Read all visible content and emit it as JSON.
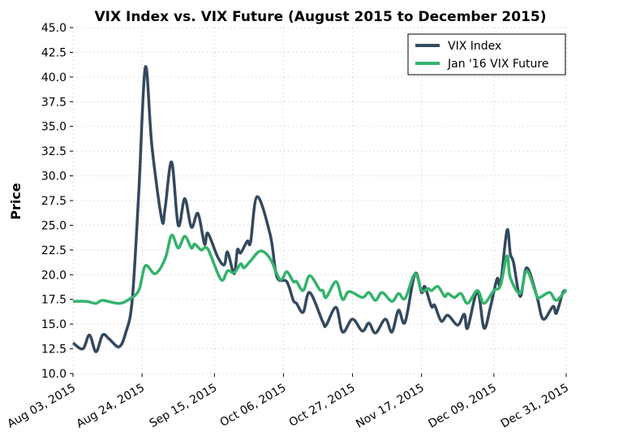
{
  "chart_data": {
    "type": "line",
    "title": "VIX Index vs. VIX Future (August 2015 to December 2015)",
    "xlabel": "",
    "ylabel": "Price",
    "ylim": [
      10.0,
      45.0
    ],
    "xlim": [
      "2015-08-03",
      "2015-12-31"
    ],
    "yticks": [
      "10.0",
      "12.5",
      "15.0",
      "17.5",
      "20.0",
      "22.5",
      "25.0",
      "27.5",
      "30.0",
      "32.5",
      "35.0",
      "37.5",
      "40.0",
      "42.5",
      "45.0"
    ],
    "xticks": [
      {
        "date": "2015-08-03",
        "label": "Aug 03, 2015"
      },
      {
        "date": "2015-08-24",
        "label": "Aug 24, 2015"
      },
      {
        "date": "2015-09-15",
        "label": "Sep 15, 2015"
      },
      {
        "date": "2015-10-06",
        "label": "Oct 06, 2015"
      },
      {
        "date": "2015-10-27",
        "label": "Oct 27, 2015"
      },
      {
        "date": "2015-11-17",
        "label": "Nov 17, 2015"
      },
      {
        "date": "2015-12-09",
        "label": "Dec 09, 2015"
      },
      {
        "date": "2015-12-31",
        "label": "Dec 31, 2015"
      }
    ],
    "grid": true,
    "legend_position": "top-right",
    "series": [
      {
        "name": "VIX Index",
        "color": "#34495e",
        "points": [
          [
            "2015-08-03",
            13.1
          ],
          [
            "2015-08-06",
            12.5
          ],
          [
            "2015-08-08",
            13.9
          ],
          [
            "2015-08-10",
            12.2
          ],
          [
            "2015-08-12",
            13.9
          ],
          [
            "2015-08-14",
            13.5
          ],
          [
            "2015-08-17",
            12.7
          ],
          [
            "2015-08-19",
            14.1
          ],
          [
            "2015-08-21",
            17.4
          ],
          [
            "2015-08-23",
            28.3
          ],
          [
            "2015-08-25",
            41.0
          ],
          [
            "2015-08-27",
            33.0
          ],
          [
            "2015-08-30",
            25.6
          ],
          [
            "2015-08-31",
            26.7
          ],
          [
            "2015-09-02",
            31.4
          ],
          [
            "2015-09-04",
            25.0
          ],
          [
            "2015-09-06",
            27.7
          ],
          [
            "2015-09-08",
            24.8
          ],
          [
            "2015-09-10",
            26.2
          ],
          [
            "2015-09-12",
            23.1
          ],
          [
            "2015-09-13",
            24.2
          ],
          [
            "2015-09-16",
            21.8
          ],
          [
            "2015-09-18",
            21.0
          ],
          [
            "2015-09-19",
            22.3
          ],
          [
            "2015-09-21",
            20.1
          ],
          [
            "2015-09-22",
            22.5
          ],
          [
            "2015-09-23",
            22.2
          ],
          [
            "2015-09-25",
            23.4
          ],
          [
            "2015-09-26",
            23.3
          ],
          [
            "2015-09-28",
            27.9
          ],
          [
            "2015-10-02",
            24.0
          ],
          [
            "2015-10-04",
            19.8
          ],
          [
            "2015-10-07",
            19.3
          ],
          [
            "2015-10-09",
            17.4
          ],
          [
            "2015-10-10",
            17.1
          ],
          [
            "2015-10-12",
            16.2
          ],
          [
            "2015-10-14",
            18.2
          ],
          [
            "2015-10-18",
            15.2
          ],
          [
            "2015-10-19",
            14.9
          ],
          [
            "2015-10-22",
            16.7
          ],
          [
            "2015-10-24",
            14.2
          ],
          [
            "2015-10-27",
            15.5
          ],
          [
            "2015-10-30",
            14.3
          ],
          [
            "2015-11-01",
            15.1
          ],
          [
            "2015-11-03",
            14.1
          ],
          [
            "2015-11-06",
            15.5
          ],
          [
            "2015-11-08",
            14.2
          ],
          [
            "2015-11-10",
            16.4
          ],
          [
            "2015-11-12",
            15.2
          ],
          [
            "2015-11-15",
            20.1
          ],
          [
            "2015-11-17",
            18.2
          ],
          [
            "2015-11-18",
            18.8
          ],
          [
            "2015-11-20",
            16.8
          ],
          [
            "2015-11-21",
            16.9
          ],
          [
            "2015-11-23",
            15.3
          ],
          [
            "2015-11-25",
            15.9
          ],
          [
            "2015-11-28",
            14.9
          ],
          [
            "2015-11-30",
            16.0
          ],
          [
            "2015-12-01",
            14.6
          ],
          [
            "2015-12-04",
            18.3
          ],
          [
            "2015-12-06",
            14.6
          ],
          [
            "2015-12-08",
            16.8
          ],
          [
            "2015-12-10",
            19.6
          ],
          [
            "2015-12-11",
            19.0
          ],
          [
            "2015-12-13",
            24.5
          ],
          [
            "2015-12-14",
            22.1
          ],
          [
            "2015-12-15",
            21.2
          ],
          [
            "2015-12-17",
            17.8
          ],
          [
            "2015-12-19",
            20.7
          ],
          [
            "2015-12-22",
            17.9
          ],
          [
            "2015-12-24",
            15.5
          ],
          [
            "2015-12-27",
            16.8
          ],
          [
            "2015-12-28",
            16.1
          ],
          [
            "2015-12-30",
            18.2
          ],
          [
            "2015-12-31",
            18.3
          ]
        ]
      },
      {
        "name": "Jan '16 VIX Future",
        "color": "#33b36b",
        "points": [
          [
            "2015-08-03",
            17.3
          ],
          [
            "2015-08-07",
            17.3
          ],
          [
            "2015-08-10",
            17.1
          ],
          [
            "2015-08-12",
            17.4
          ],
          [
            "2015-08-17",
            17.1
          ],
          [
            "2015-08-20",
            17.5
          ],
          [
            "2015-08-23",
            18.4
          ],
          [
            "2015-08-25",
            20.9
          ],
          [
            "2015-08-28",
            20.1
          ],
          [
            "2015-08-31",
            21.6
          ],
          [
            "2015-09-02",
            24.0
          ],
          [
            "2015-09-04",
            22.7
          ],
          [
            "2015-09-06",
            23.9
          ],
          [
            "2015-09-08",
            22.7
          ],
          [
            "2015-09-09",
            23.1
          ],
          [
            "2015-09-11",
            22.5
          ],
          [
            "2015-09-13",
            22.6
          ],
          [
            "2015-09-17",
            19.5
          ],
          [
            "2015-09-19",
            20.4
          ],
          [
            "2015-09-21",
            20.2
          ],
          [
            "2015-09-23",
            21.1
          ],
          [
            "2015-09-24",
            20.7
          ],
          [
            "2015-09-26",
            21.4
          ],
          [
            "2015-09-29",
            22.4
          ],
          [
            "2015-10-02",
            21.6
          ],
          [
            "2015-10-05",
            19.5
          ],
          [
            "2015-10-07",
            20.3
          ],
          [
            "2015-10-09",
            19.3
          ],
          [
            "2015-10-10",
            19.3
          ],
          [
            "2015-10-12",
            18.4
          ],
          [
            "2015-10-14",
            19.9
          ],
          [
            "2015-10-17",
            18.5
          ],
          [
            "2015-10-18",
            18.4
          ],
          [
            "2015-10-19",
            17.7
          ],
          [
            "2015-10-22",
            19.3
          ],
          [
            "2015-10-24",
            17.5
          ],
          [
            "2015-10-26",
            18.3
          ],
          [
            "2015-10-30",
            17.7
          ],
          [
            "2015-11-01",
            18.2
          ],
          [
            "2015-11-03",
            17.4
          ],
          [
            "2015-11-05",
            18.2
          ],
          [
            "2015-11-08",
            17.3
          ],
          [
            "2015-11-10",
            18.1
          ],
          [
            "2015-11-12",
            17.6
          ],
          [
            "2015-11-15",
            20.1
          ],
          [
            "2015-11-17",
            18.4
          ],
          [
            "2015-11-19",
            18.6
          ],
          [
            "2015-11-20",
            18.4
          ],
          [
            "2015-11-22",
            18.8
          ],
          [
            "2015-11-24",
            17.8
          ],
          [
            "2015-11-25",
            18.1
          ],
          [
            "2015-11-27",
            17.7
          ],
          [
            "2015-11-29",
            18.1
          ],
          [
            "2015-12-01",
            17.1
          ],
          [
            "2015-12-04",
            18.4
          ],
          [
            "2015-12-06",
            17.1
          ],
          [
            "2015-12-09",
            18.4
          ],
          [
            "2015-12-11",
            18.9
          ],
          [
            "2015-12-13",
            21.9
          ],
          [
            "2015-12-14",
            19.7
          ],
          [
            "2015-12-17",
            18.1
          ],
          [
            "2015-12-19",
            20.4
          ],
          [
            "2015-12-22",
            17.9
          ],
          [
            "2015-12-23",
            17.7
          ],
          [
            "2015-12-26",
            18.2
          ],
          [
            "2015-12-28",
            17.4
          ],
          [
            "2015-12-31",
            18.5
          ]
        ]
      }
    ]
  }
}
